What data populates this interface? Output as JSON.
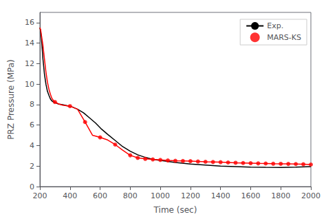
{
  "chart_data": {
    "type": "line",
    "xlabel": "Time (sec)",
    "ylabel": "PRZ Pressure (MPa)",
    "xlim": [
      200,
      2000
    ],
    "xticks": [
      200,
      400,
      600,
      800,
      1000,
      1200,
      1400,
      1600,
      1800,
      2000
    ],
    "ylim": [
      0,
      17
    ],
    "yticks": [
      0,
      2,
      4,
      6,
      8,
      10,
      12,
      14,
      16
    ],
    "grid": false,
    "legend": "upper right",
    "series": [
      {
        "name": "Exp.",
        "type": "line",
        "color": "#000000",
        "line_style": "solid",
        "x": [
          200,
          205,
          210,
          215,
          220,
          230,
          240,
          250,
          260,
          270,
          280,
          290,
          300,
          310,
          325,
          350,
          380,
          410,
          450,
          490,
          530,
          570,
          610,
          650,
          700,
          750,
          800,
          850,
          900,
          950,
          1000,
          1100,
          1200,
          1300,
          1400,
          1500,
          1600,
          1700,
          1800,
          1900,
          2000
        ],
        "values": [
          15.5,
          15.2,
          14.5,
          13.5,
          12.5,
          11.0,
          10.0,
          9.3,
          8.9,
          8.55,
          8.35,
          8.25,
          8.2,
          8.15,
          8.05,
          8.0,
          7.9,
          7.8,
          7.55,
          7.2,
          6.7,
          6.2,
          5.6,
          5.1,
          4.5,
          3.9,
          3.45,
          3.1,
          2.85,
          2.65,
          2.55,
          2.35,
          2.2,
          2.1,
          2.0,
          1.95,
          1.9,
          1.88,
          1.87,
          1.9,
          1.95
        ]
      },
      {
        "type": "line",
        "color": "#ff0000",
        "line_style": "solid",
        "x": [
          200,
          205,
          210,
          220,
          230,
          240,
          250,
          260,
          270,
          280,
          290,
          300,
          320,
          350,
          400,
          450,
          500,
          550,
          600,
          650,
          700,
          750,
          800,
          850,
          900,
          950,
          1000,
          1050,
          1100,
          1150,
          1200,
          1250,
          1300,
          1350,
          1400,
          1450,
          1500,
          1550,
          1600,
          1650,
          1700,
          1750,
          1800,
          1850,
          1900,
          1950,
          2000
        ],
        "values": [
          15.5,
          15.3,
          14.8,
          13.8,
          12.5,
          11.2,
          10.2,
          9.5,
          9.0,
          8.6,
          8.4,
          8.25,
          8.1,
          7.95,
          7.85,
          7.55,
          6.3,
          5.0,
          4.8,
          4.55,
          4.1,
          3.55,
          3.05,
          2.8,
          2.7,
          2.65,
          2.6,
          2.55,
          2.52,
          2.5,
          2.48,
          2.45,
          2.42,
          2.4,
          2.38,
          2.35,
          2.32,
          2.3,
          2.28,
          2.26,
          2.25,
          2.23,
          2.22,
          2.21,
          2.2,
          2.18,
          2.15
        ]
      },
      {
        "name": "MARS-KS",
        "type": "scatter",
        "color": "#ff0000",
        "marker": "circle",
        "x": [
          300,
          400,
          500,
          600,
          700,
          800,
          850,
          900,
          950,
          1000,
          1050,
          1100,
          1150,
          1200,
          1250,
          1300,
          1350,
          1400,
          1450,
          1500,
          1550,
          1600,
          1650,
          1700,
          1750,
          1800,
          1850,
          1900,
          1950,
          2000
        ],
        "values": [
          8.25,
          7.85,
          6.3,
          4.8,
          4.1,
          3.05,
          2.8,
          2.7,
          2.65,
          2.6,
          2.55,
          2.52,
          2.5,
          2.48,
          2.45,
          2.42,
          2.4,
          2.38,
          2.35,
          2.32,
          2.3,
          2.28,
          2.26,
          2.25,
          2.23,
          2.22,
          2.21,
          2.2,
          2.18,
          2.15
        ]
      }
    ]
  }
}
